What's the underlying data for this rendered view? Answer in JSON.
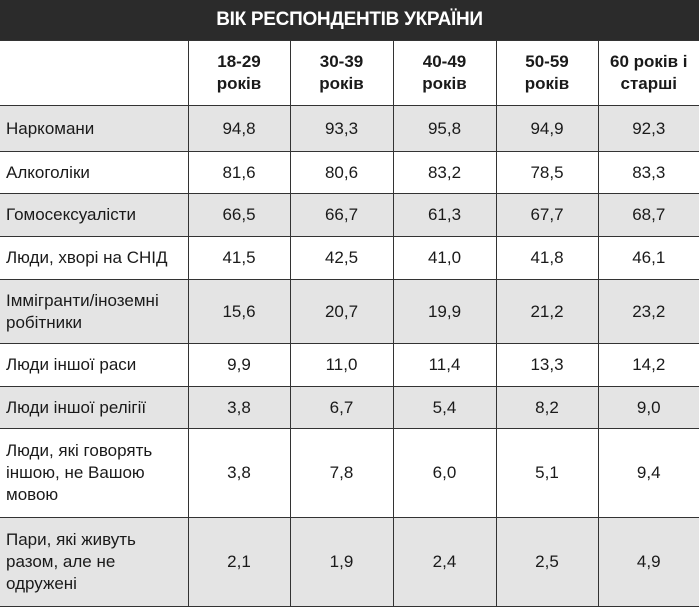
{
  "title": "ВІК РЕСПОНДЕНТІВ УКРАЇНИ",
  "table": {
    "columns": [
      "18-29\nроків",
      "30-39\nроків",
      "40-49\nроків",
      "50-59\nроків",
      "60 років і\nстарші"
    ],
    "rows": [
      {
        "label": "Наркомани",
        "cells": [
          "94,8",
          "93,3",
          "95,8",
          "94,9",
          "92,3"
        ]
      },
      {
        "label": "Алкоголіки",
        "cells": [
          "81,6",
          "80,6",
          "83,2",
          "78,5",
          "83,3"
        ]
      },
      {
        "label": "Гомосексуалісти",
        "cells": [
          "66,5",
          "66,7",
          "61,3",
          "67,7",
          "68,7"
        ]
      },
      {
        "label": "Люди, хворі на СНІД",
        "cells": [
          "41,5",
          "42,5",
          "41,0",
          "41,8",
          "46,1"
        ]
      },
      {
        "label": "Іммігранти/іноземні\nробітники",
        "cells": [
          "15,6",
          "20,7",
          "19,9",
          "21,2",
          "23,2"
        ]
      },
      {
        "label": "Люди іншої раси",
        "cells": [
          "9,9",
          "11,0",
          "11,4",
          "13,3",
          "14,2"
        ]
      },
      {
        "label": "Люди іншої релігії",
        "cells": [
          "3,8",
          "6,7",
          "5,4",
          "8,2",
          "9,0"
        ]
      },
      {
        "label": "Люди, які говорять\nіншою, не Вашою\nмовою",
        "cells": [
          "3,8",
          "7,8",
          "6,0",
          "5,1",
          "9,4"
        ]
      },
      {
        "label": "Пари, які живуть\nразом, але не\nодружені",
        "cells": [
          "2,1",
          "1,9",
          "2,4",
          "2,5",
          "4,9"
        ]
      }
    ]
  }
}
